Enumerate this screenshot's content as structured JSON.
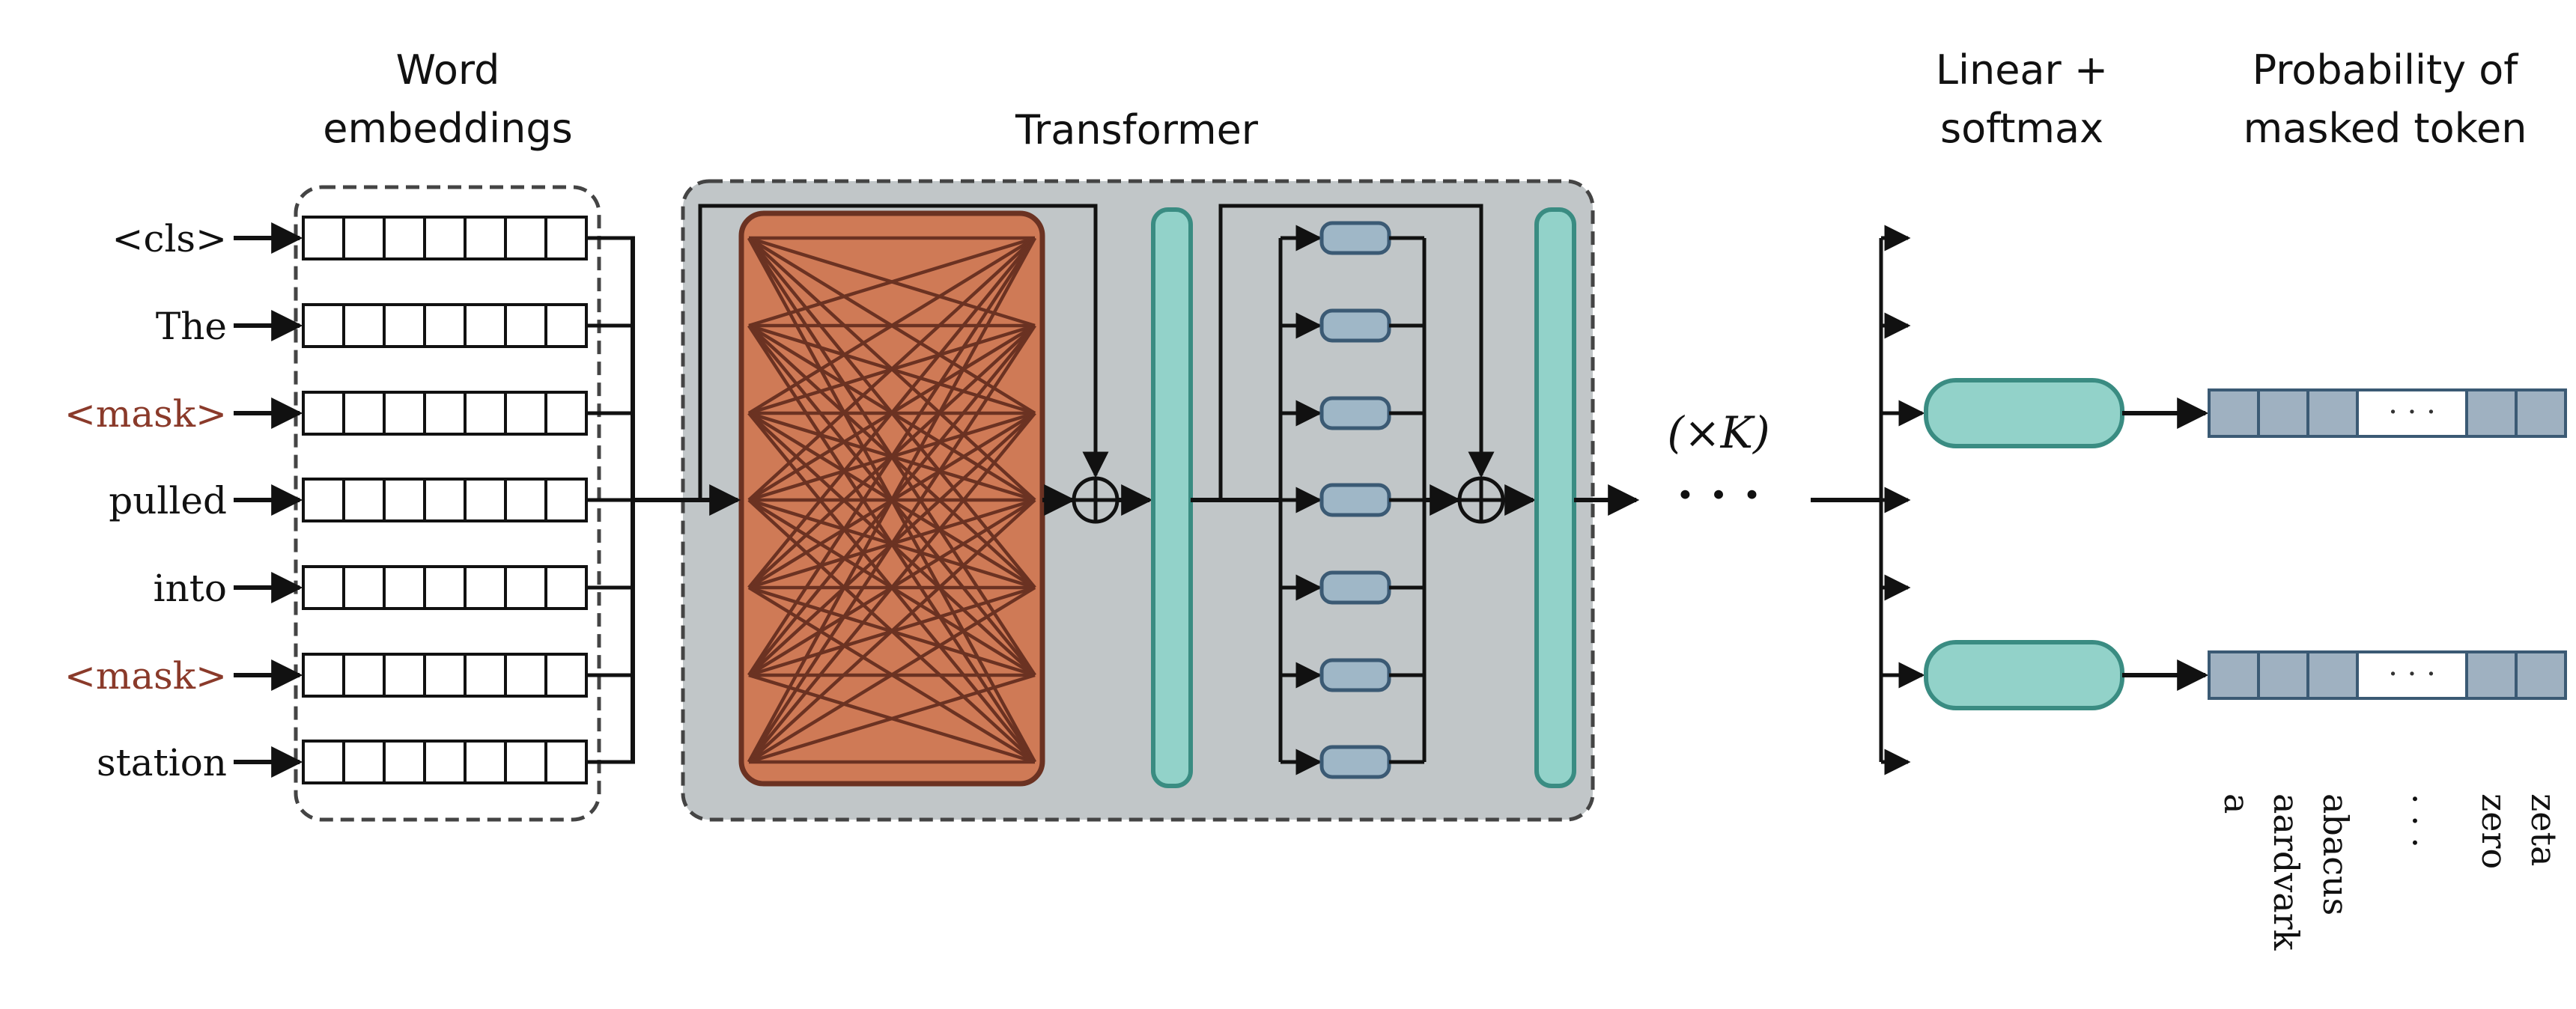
{
  "headings": {
    "word_embeddings": [
      "Word",
      "embeddings"
    ],
    "transformer": "Transformer",
    "linear_softmax": [
      "Linear +",
      "softmax"
    ],
    "probability": [
      "Probability of",
      "masked token"
    ]
  },
  "tokens": [
    {
      "text": "<cls>",
      "masked": false
    },
    {
      "text": "The",
      "masked": false
    },
    {
      "text": "<mask>",
      "masked": true
    },
    {
      "text": "pulled",
      "masked": false
    },
    {
      "text": "into",
      "masked": false
    },
    {
      "text": "<mask>",
      "masked": true
    },
    {
      "text": "station",
      "masked": false
    }
  ],
  "repeat_label": "(×K)",
  "continuation": "· · ·",
  "plus_symbol": "⊕",
  "output_ellipsis": "· · ·",
  "vocabulary": [
    "a",
    "aardvark",
    "abacus",
    "· · ·",
    "zero",
    "zeta"
  ],
  "colors": {
    "attention_fill": "#cf7a56",
    "attention_lines": "#6b3222",
    "transformer_bg": "#c1c6c8",
    "norm_fill": "#92d2c9",
    "norm_stroke": "#3a8c82",
    "ffn_fill": "#9fb7c7",
    "ffn_stroke": "#3b5a74",
    "prob_fill": "#9fb1c1",
    "masked_text": "#8a3a2a"
  }
}
